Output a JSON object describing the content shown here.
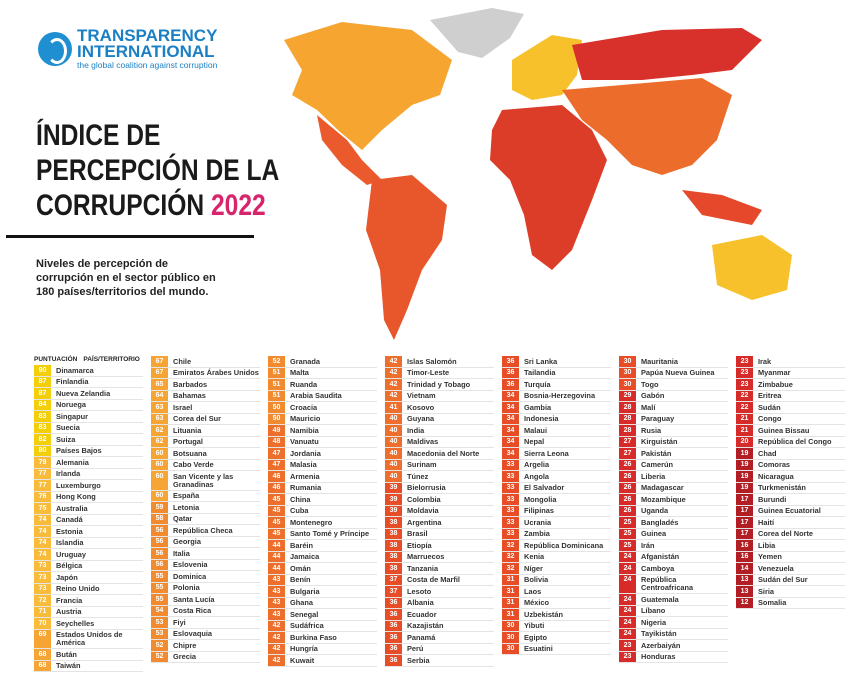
{
  "header": {
    "logo": [
      "TRANSPARENCY",
      "INTERNATIONAL"
    ],
    "tagline": "the global coalition against corruption",
    "title": [
      "ÍNDICE DE",
      "PERCEPCIÓN DE LA",
      "CORRUPCIÓN"
    ],
    "year": "2022",
    "subtitle": [
      "Niveles de percepción de",
      "corrupción en el sector público en",
      "180 países/territorios del mundo."
    ]
  },
  "table": {
    "header": [
      "PUNTUACIÓN",
      "PAÍS/TERRITORIO"
    ],
    "columns": [
      [
        [
          90,
          "Dinamarca"
        ],
        [
          87,
          "Finlandia"
        ],
        [
          87,
          "Nueva Zelandia"
        ],
        [
          84,
          "Noruega"
        ],
        [
          83,
          "Singapur"
        ],
        [
          83,
          "Suecia"
        ],
        [
          82,
          "Suiza"
        ],
        [
          80,
          "Países Bajos"
        ],
        [
          79,
          "Alemania"
        ],
        [
          77,
          "Irlanda"
        ],
        [
          77,
          "Luxemburgo"
        ],
        [
          76,
          "Hong Kong"
        ],
        [
          75,
          "Australia"
        ],
        [
          74,
          "Canadá"
        ],
        [
          74,
          "Estonia"
        ],
        [
          74,
          "Islandia"
        ],
        [
          74,
          "Uruguay"
        ],
        [
          73,
          "Bélgica"
        ],
        [
          73,
          "Japón"
        ],
        [
          73,
          "Reino Unido"
        ],
        [
          72,
          "Francia"
        ],
        [
          71,
          "Austria"
        ],
        [
          70,
          "Seychelles"
        ],
        [
          69,
          "Estados Unidos de América"
        ],
        [
          68,
          "Bután"
        ],
        [
          68,
          "Taiwán"
        ]
      ],
      [
        [
          67,
          "Chile"
        ],
        [
          67,
          "Emiratos Árabes Unidos"
        ],
        [
          65,
          "Barbados"
        ],
        [
          64,
          "Bahamas"
        ],
        [
          63,
          "Israel"
        ],
        [
          63,
          "Corea del Sur"
        ],
        [
          62,
          "Lituania"
        ],
        [
          62,
          "Portugal"
        ],
        [
          60,
          "Botsuana"
        ],
        [
          60,
          "Cabo Verde"
        ],
        [
          60,
          "San Vicente y las Granadinas"
        ],
        [
          60,
          "España"
        ],
        [
          59,
          "Letonia"
        ],
        [
          58,
          "Qatar"
        ],
        [
          56,
          "República Checa"
        ],
        [
          56,
          "Georgia"
        ],
        [
          56,
          "Italia"
        ],
        [
          56,
          "Eslovenia"
        ],
        [
          55,
          "Dominica"
        ],
        [
          55,
          "Polonia"
        ],
        [
          55,
          "Santa Lucía"
        ],
        [
          54,
          "Costa Rica"
        ],
        [
          53,
          "Fiyi"
        ],
        [
          53,
          "Eslovaquia"
        ],
        [
          52,
          "Chipre"
        ],
        [
          52,
          "Grecia"
        ]
      ],
      [
        [
          52,
          "Granada"
        ],
        [
          51,
          "Malta"
        ],
        [
          51,
          "Ruanda"
        ],
        [
          51,
          "Arabia Saudita"
        ],
        [
          50,
          "Croacia"
        ],
        [
          50,
          "Mauricio"
        ],
        [
          49,
          "Namibia"
        ],
        [
          48,
          "Vanuatu"
        ],
        [
          47,
          "Jordania"
        ],
        [
          47,
          "Malasia"
        ],
        [
          46,
          "Armenia"
        ],
        [
          46,
          "Rumania"
        ],
        [
          45,
          "China"
        ],
        [
          45,
          "Cuba"
        ],
        [
          45,
          "Montenegro"
        ],
        [
          45,
          "Santo Tomé y Príncipe"
        ],
        [
          44,
          "Baréin"
        ],
        [
          44,
          "Jamaica"
        ],
        [
          44,
          "Omán"
        ],
        [
          43,
          "Benín"
        ],
        [
          43,
          "Bulgaria"
        ],
        [
          43,
          "Ghana"
        ],
        [
          43,
          "Senegal"
        ],
        [
          42,
          "Sudáfrica"
        ],
        [
          42,
          "Burkina Faso"
        ],
        [
          42,
          "Hungría"
        ],
        [
          42,
          "Kuwait"
        ]
      ],
      [
        [
          42,
          "Islas Salomón"
        ],
        [
          42,
          "Timor-Leste"
        ],
        [
          42,
          "Trinidad y Tobago"
        ],
        [
          42,
          "Vietnam"
        ],
        [
          41,
          "Kosovo"
        ],
        [
          40,
          "Guyana"
        ],
        [
          40,
          "India"
        ],
        [
          40,
          "Maldivas"
        ],
        [
          40,
          "Macedonia del Norte"
        ],
        [
          40,
          "Surinam"
        ],
        [
          40,
          "Túnez"
        ],
        [
          39,
          "Bielorrusia"
        ],
        [
          39,
          "Colombia"
        ],
        [
          39,
          "Moldavia"
        ],
        [
          38,
          "Argentina"
        ],
        [
          38,
          "Brasil"
        ],
        [
          38,
          "Etiopía"
        ],
        [
          38,
          "Marruecos"
        ],
        [
          38,
          "Tanzania"
        ],
        [
          37,
          "Costa de Marfil"
        ],
        [
          37,
          "Lesoto"
        ],
        [
          36,
          "Albania"
        ],
        [
          36,
          "Ecuador"
        ],
        [
          36,
          "Kazajistán"
        ],
        [
          36,
          "Panamá"
        ],
        [
          36,
          "Perú"
        ],
        [
          36,
          "Serbia"
        ]
      ],
      [
        [
          36,
          "Sri Lanka"
        ],
        [
          36,
          "Tailandia"
        ],
        [
          36,
          "Turquía"
        ],
        [
          34,
          "Bosnia-Herzegovina"
        ],
        [
          34,
          "Gambia"
        ],
        [
          34,
          "Indonesia"
        ],
        [
          34,
          "Malaui"
        ],
        [
          34,
          "Nepal"
        ],
        [
          34,
          "Sierra Leona"
        ],
        [
          33,
          "Argelia"
        ],
        [
          33,
          "Angola"
        ],
        [
          33,
          "El Salvador"
        ],
        [
          33,
          "Mongolia"
        ],
        [
          33,
          "Filipinas"
        ],
        [
          33,
          "Ucrania"
        ],
        [
          33,
          "Zambia"
        ],
        [
          32,
          "República Dominicana"
        ],
        [
          32,
          "Kenia"
        ],
        [
          32,
          "Níger"
        ],
        [
          31,
          "Bolivia"
        ],
        [
          31,
          "Laos"
        ],
        [
          31,
          "México"
        ],
        [
          31,
          "Uzbekistán"
        ],
        [
          30,
          "Yibuti"
        ],
        [
          30,
          "Egipto"
        ],
        [
          30,
          "Esuatini"
        ]
      ],
      [
        [
          30,
          "Mauritania"
        ],
        [
          30,
          "Papúa Nueva Guinea"
        ],
        [
          30,
          "Togo"
        ],
        [
          29,
          "Gabón"
        ],
        [
          28,
          "Malí"
        ],
        [
          28,
          "Paraguay"
        ],
        [
          28,
          "Rusia"
        ],
        [
          27,
          "Kirguistán"
        ],
        [
          27,
          "Pakistán"
        ],
        [
          26,
          "Camerún"
        ],
        [
          26,
          "Liberia"
        ],
        [
          26,
          "Madagascar"
        ],
        [
          26,
          "Mozambique"
        ],
        [
          26,
          "Uganda"
        ],
        [
          25,
          "Bangladés"
        ],
        [
          25,
          "Guinea"
        ],
        [
          25,
          "Irán"
        ],
        [
          24,
          "Afganistán"
        ],
        [
          24,
          "Camboya"
        ],
        [
          24,
          "República Centroafricana"
        ],
        [
          24,
          "Guatemala"
        ],
        [
          24,
          "Líbano"
        ],
        [
          24,
          "Nigeria"
        ],
        [
          24,
          "Tayikistán"
        ],
        [
          23,
          "Azerbaiyán"
        ],
        [
          23,
          "Honduras"
        ]
      ],
      [
        [
          23,
          "Irak"
        ],
        [
          23,
          "Myanmar"
        ],
        [
          23,
          "Zimbabue"
        ],
        [
          22,
          "Eritrea"
        ],
        [
          22,
          "Sudán"
        ],
        [
          21,
          "Congo"
        ],
        [
          21,
          "Guinea Bissau"
        ],
        [
          20,
          "República del Congo"
        ],
        [
          19,
          "Chad"
        ],
        [
          19,
          "Comoras"
        ],
        [
          19,
          "Nicaragua"
        ],
        [
          19,
          "Turkmenistán"
        ],
        [
          17,
          "Burundi"
        ],
        [
          17,
          "Guinea Ecuatorial"
        ],
        [
          17,
          "Haití"
        ],
        [
          17,
          "Corea del Norte"
        ],
        [
          16,
          "Libia"
        ],
        [
          16,
          "Yemen"
        ],
        [
          14,
          "Venezuela"
        ],
        [
          13,
          "Sudán del Sur"
        ],
        [
          13,
          "Siria"
        ],
        [
          12,
          "Somalia"
        ]
      ]
    ]
  }
}
